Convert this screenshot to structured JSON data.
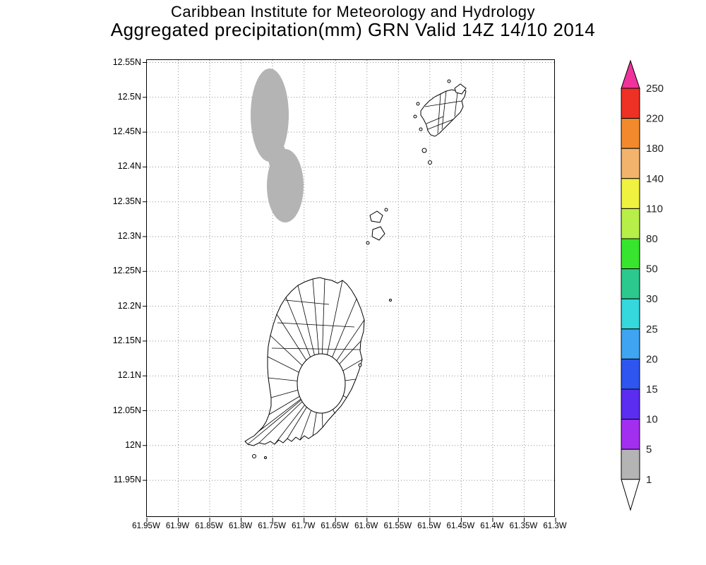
{
  "header": {
    "line1": "Caribbean Institute for Meteorology and Hydrology",
    "line2": "Aggregated precipitation(mm) GRN Valid 14Z 14/10 2014"
  },
  "map": {
    "grid_color": "#8f8f8f",
    "y_ticks": [
      "12.55N",
      "12.5N",
      "12.45N",
      "12.4N",
      "12.35N",
      "12.3N",
      "12.25N",
      "12.2N",
      "12.15N",
      "12.1N",
      "12.05N",
      "12N",
      "11.95N"
    ],
    "x_ticks": [
      "61.95W",
      "61.9W",
      "61.85W",
      "61.8W",
      "61.75W",
      "61.7W",
      "61.65W",
      "61.6W",
      "61.55W",
      "61.5W",
      "61.45W",
      "61.4W",
      "61.35W",
      "61.3W"
    ]
  },
  "colors": {
    "precip_shade": "#b4b4b4",
    "coastline": "#000000",
    "background": "#ffffff"
  },
  "colorbar": {
    "arrow_top_color": "#f0329b",
    "arrow_bottom_color": "#ffffff",
    "bottom_label": "1",
    "segments": [
      {
        "label": "250",
        "color": "#ee3124"
      },
      {
        "label": "220",
        "color": "#f28a2d"
      },
      {
        "label": "180",
        "color": "#f2b46c"
      },
      {
        "label": "140",
        "color": "#eff23f"
      },
      {
        "label": "110",
        "color": "#b7ef48"
      },
      {
        "label": "80",
        "color": "#37e52e"
      },
      {
        "label": "50",
        "color": "#2cc98e"
      },
      {
        "label": "30",
        "color": "#35d8dc"
      },
      {
        "label": "25",
        "color": "#3fa4f2"
      },
      {
        "label": "20",
        "color": "#2f55f0"
      },
      {
        "label": "15",
        "color": "#5b2df0"
      },
      {
        "label": "10",
        "color": "#a22ff0"
      },
      {
        "label": "5",
        "color": "#b4b4b4"
      }
    ]
  },
  "chart_data": {
    "type": "map",
    "title": "Aggregated precipitation(mm) GRN Valid 14Z 14/10 2014",
    "institution": "Caribbean Institute for Meteorology and Hydrology",
    "variable": "Aggregated precipitation (mm)",
    "region_code": "GRN",
    "valid_time": "14Z 14/10 2014",
    "lat_range": [
      "11.95N",
      "12.55N"
    ],
    "lon_range": [
      "61.95W",
      "61.3W"
    ],
    "grid_interval_deg": 0.05,
    "scale_levels_mm": [
      1,
      5,
      10,
      15,
      20,
      25,
      30,
      50,
      80,
      110,
      140,
      180,
      220,
      250
    ],
    "shaded_features": [
      {
        "value_bin_mm": "1-5",
        "color": "#b4b4b4",
        "approx_extent": {
          "lon": [
            "61.81W",
            "61.74W"
          ],
          "lat": [
            "12.31N",
            "12.53N"
          ]
        },
        "description": "single gray shaded precipitation area northwest of Grenada, elongated north-south with a narrow waist"
      }
    ],
    "landmasses": [
      "Grenada with watershed boundaries",
      "Carriacou with boundaries",
      "small Grenadine islets"
    ]
  }
}
